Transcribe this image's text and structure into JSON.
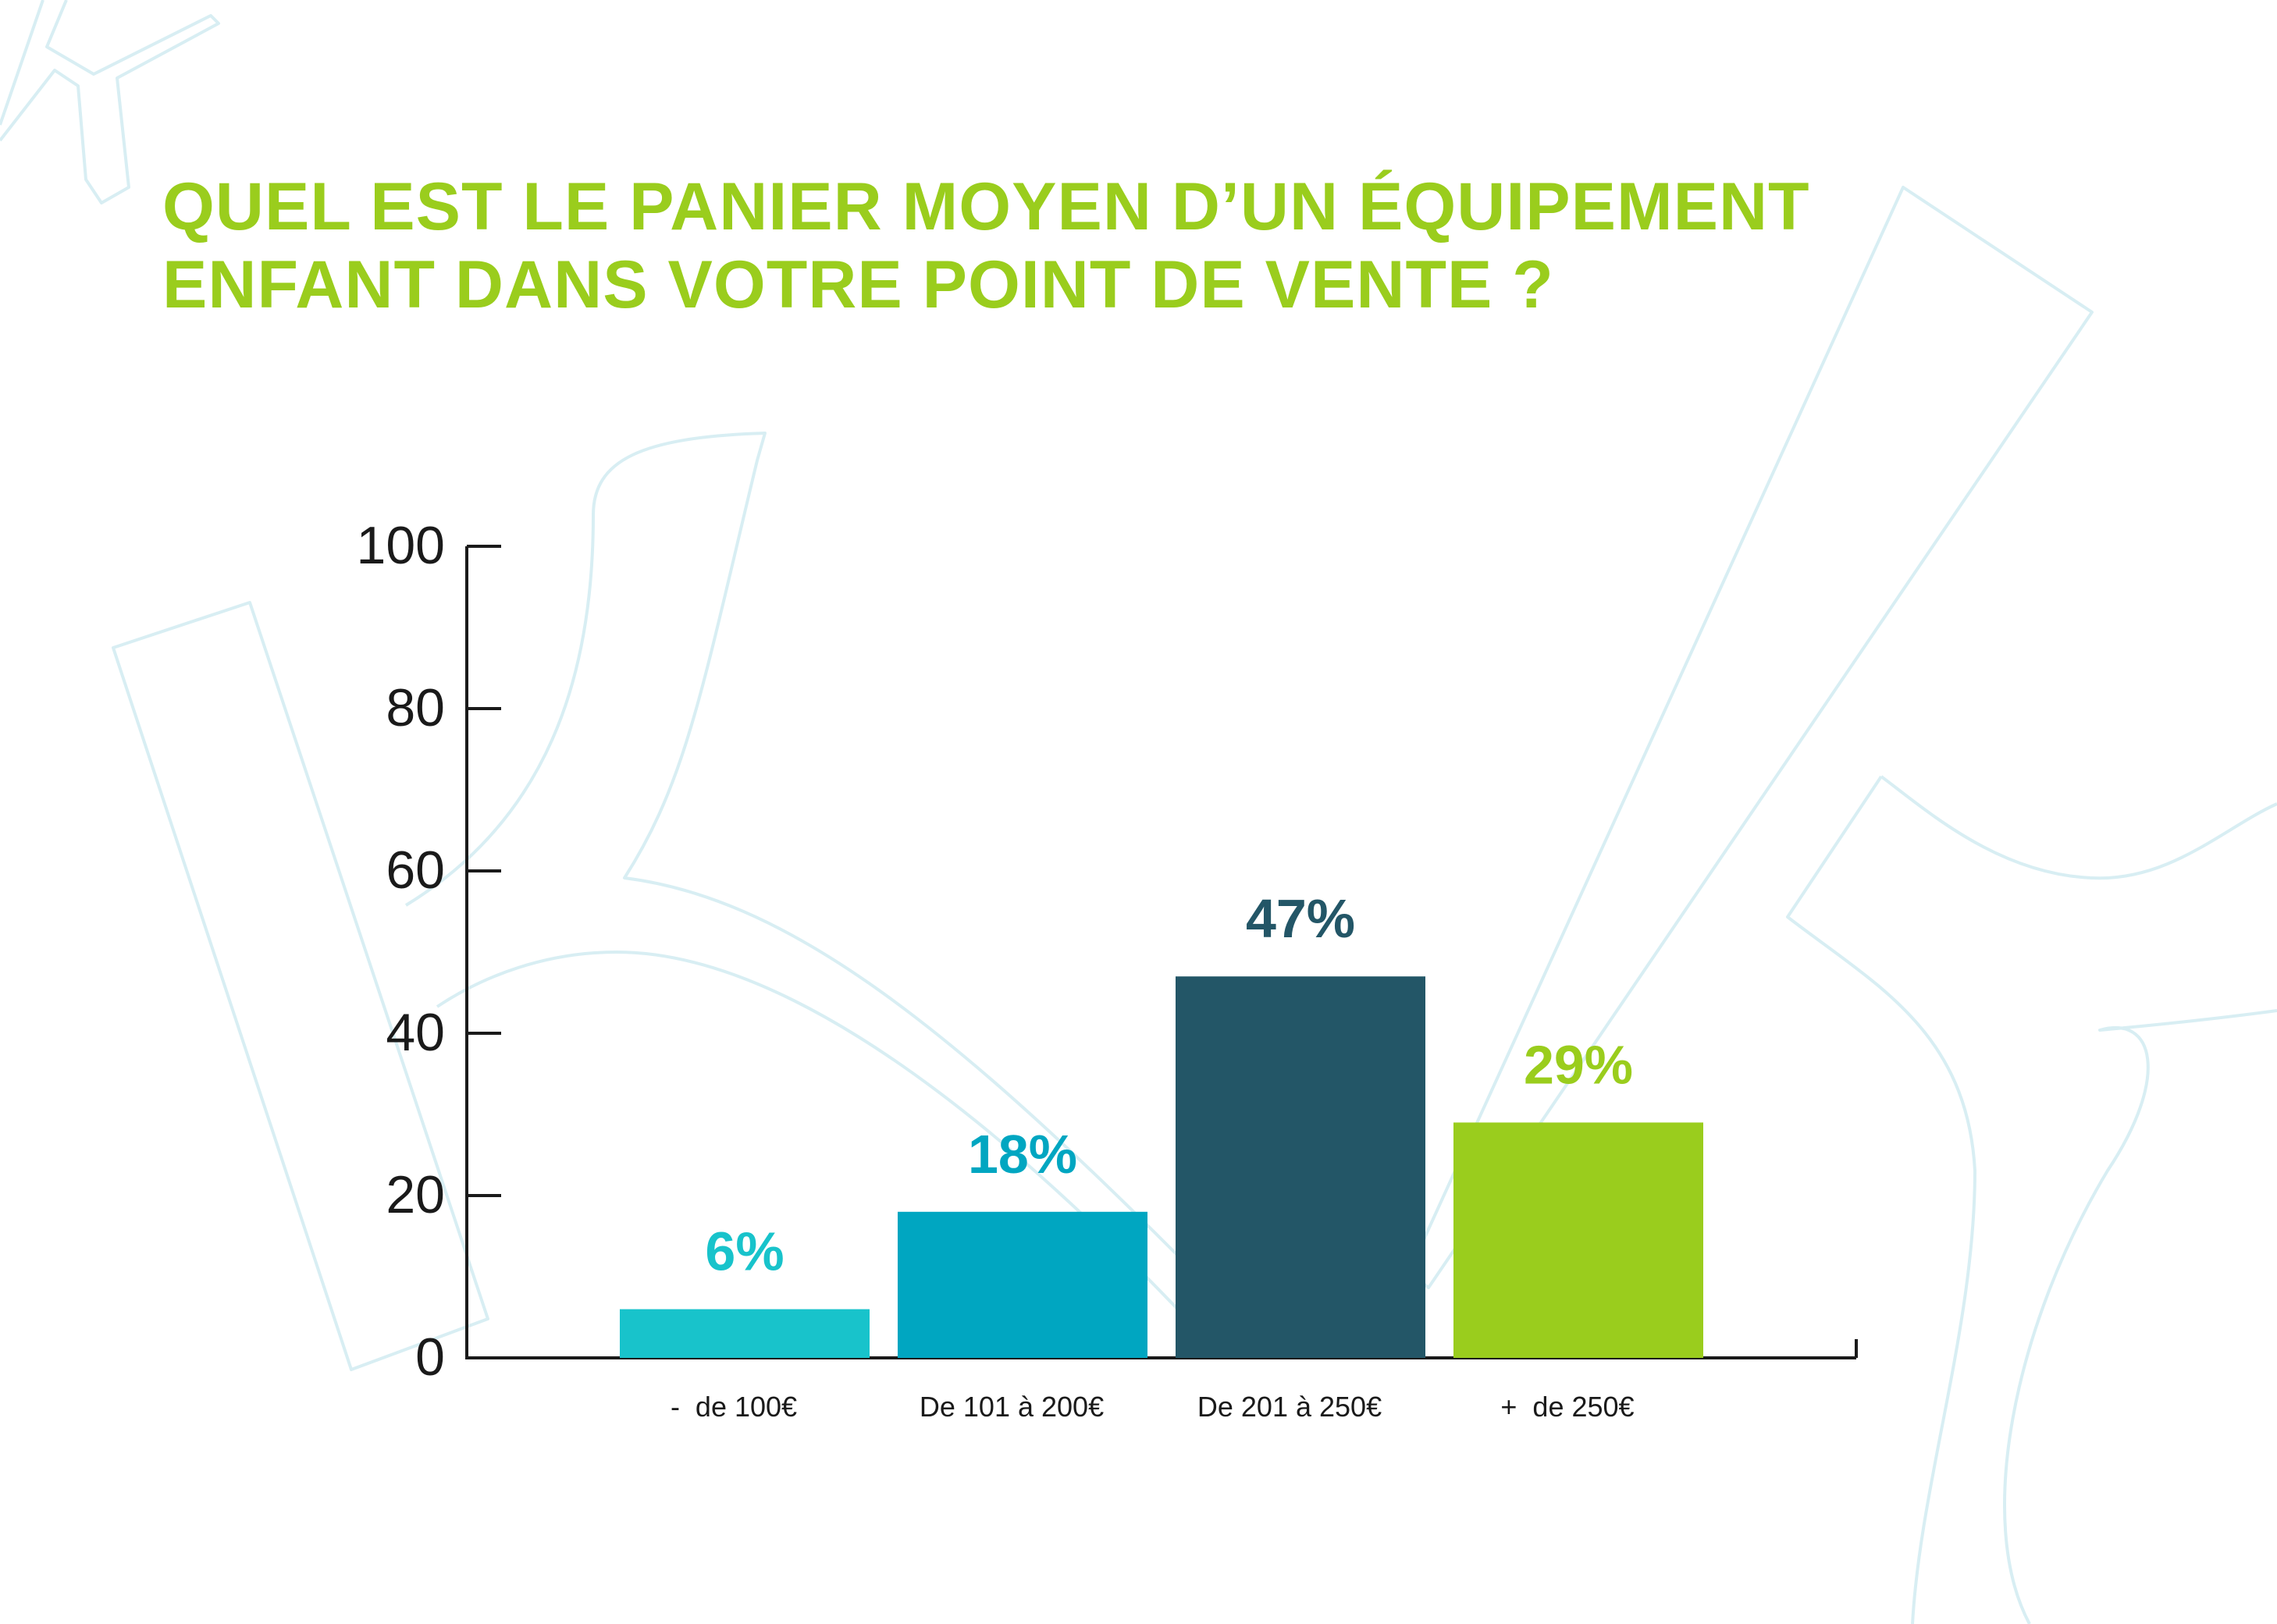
{
  "title_lines": [
    "QUEL EST LE PANIER MOYEN D’UN ÉQUIPEMENT",
    "ENFANT DANS VOTRE POINT DE VENTE ?"
  ],
  "colors": {
    "title": "#9acd1d",
    "axis": "#1a1a1a",
    "watermark": "#d8eef3"
  },
  "chart_data": {
    "type": "bar",
    "title": "QUEL EST LE PANIER MOYEN D’UN ÉQUIPEMENT ENFANT DANS VOTRE POINT DE VENTE ?",
    "categories": [
      "-  de 100€",
      "De 101 à 200€",
      "De 201 à 250€",
      "+  de 250€"
    ],
    "values": [
      6,
      18,
      47,
      29
    ],
    "data_labels": [
      "6%",
      "18%",
      "47%",
      "29%"
    ],
    "bar_colors": [
      "#18c3cb",
      "#00a6c1",
      "#235667",
      "#9acd1d"
    ],
    "label_colors": [
      "#18c3cb",
      "#00a6c1",
      "#235667",
      "#9acd1d"
    ],
    "yticks": [
      "0",
      "20",
      "40",
      "60",
      "80",
      "100"
    ],
    "ylim": [
      0,
      100
    ],
    "xlabel": "",
    "ylabel": "",
    "grid": false,
    "legend": "none"
  }
}
